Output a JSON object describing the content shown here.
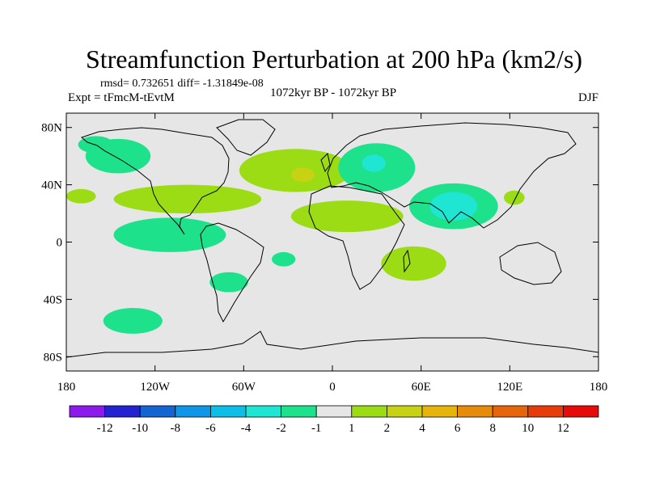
{
  "chart_data": {
    "type": "heatmap",
    "title": "Streamfunction Perturbation at 200 hPa (km2/s)",
    "stats_text": "rmsd= 0.732651  diff= -1.31849e-08",
    "expt_text": "Expt = tFmcM-tEvtM",
    "period_text": "1072kyr BP - 1072kyr BP",
    "season": "DJF",
    "x_axis": {
      "range": [
        -180,
        180
      ],
      "ticks": [
        -180,
        -120,
        -60,
        0,
        60,
        120,
        180
      ],
      "tick_labels": [
        "180",
        "120W",
        "60W",
        "0",
        "60E",
        "120E",
        "180"
      ]
    },
    "y_axis": {
      "range": [
        -90,
        90
      ],
      "ticks": [
        80,
        40,
        0,
        -40,
        -80
      ],
      "tick_labels": [
        "80N",
        "40N",
        "0",
        "40S",
        "80S"
      ]
    },
    "background_value_range": [
      -1,
      1
    ],
    "background_color": "#e6e6e6",
    "colorbar": {
      "colors": [
        "#8c1aeb",
        "#2323d2",
        "#1464d2",
        "#0f96e6",
        "#0fbee6",
        "#1ee6d2",
        "#1ee18c",
        "#e6e6e6",
        "#9bdc14",
        "#c8d214",
        "#e6b40a",
        "#e68c0a",
        "#e6640a",
        "#e63c0a",
        "#e60a0a"
      ],
      "levels": [
        -12,
        -10,
        -8,
        -6,
        -4,
        -2,
        -1,
        1,
        2,
        4,
        6,
        8,
        10,
        12
      ],
      "tick_labels": [
        "-12",
        "-10",
        "-8",
        "-6",
        "-4",
        "-2",
        "-1",
        "1",
        "2",
        "4",
        "6",
        "8",
        "10",
        "12"
      ]
    },
    "anomaly_regions": [
      {
        "name": "north-pacific-negative",
        "lon": -145,
        "lat": 60,
        "lon_radius": 22,
        "lat_radius": 12,
        "value": -1.5
      },
      {
        "name": "alaska-negative",
        "lon": -160,
        "lat": 68,
        "lon_radius": 12,
        "lat_radius": 6,
        "value": -1.5
      },
      {
        "name": "north-atlantic-positive",
        "lon": -25,
        "lat": 50,
        "lon_radius": 38,
        "lat_radius": 15,
        "value": 1.5
      },
      {
        "name": "north-atlantic-core",
        "lon": -20,
        "lat": 47,
        "lon_radius": 8,
        "lat_radius": 5,
        "value": 2.5
      },
      {
        "name": "europe-negative",
        "lon": 30,
        "lat": 52,
        "lon_radius": 26,
        "lat_radius": 17,
        "value": -1.5
      },
      {
        "name": "europe-core",
        "lon": 28,
        "lat": 55,
        "lon_radius": 8,
        "lat_radius": 6,
        "value": -2.5
      },
      {
        "name": "central-pacific-positive",
        "lon": -170,
        "lat": 32,
        "lon_radius": 10,
        "lat_radius": 5,
        "value": 1.5
      },
      {
        "name": "us-positive",
        "lon": -98,
        "lat": 30,
        "lon_radius": 50,
        "lat_radius": 10,
        "value": 1.5
      },
      {
        "name": "eq-pacific-negative",
        "lon": -110,
        "lat": 5,
        "lon_radius": 38,
        "lat_radius": 12,
        "value": -1.5
      },
      {
        "name": "sahara-positive",
        "lon": 10,
        "lat": 18,
        "lon_radius": 38,
        "lat_radius": 11,
        "value": 1.5
      },
      {
        "name": "india-negative",
        "lon": 82,
        "lat": 25,
        "lon_radius": 30,
        "lat_radius": 16,
        "value": -1.5
      },
      {
        "name": "india-core",
        "lon": 82,
        "lat": 25,
        "lon_radius": 16,
        "lat_radius": 10,
        "value": -2.5
      },
      {
        "name": "japan-positive",
        "lon": 123,
        "lat": 31,
        "lon_radius": 7,
        "lat_radius": 5,
        "value": 1.5
      },
      {
        "name": "atlantic-eq-negative",
        "lon": -33,
        "lat": -12,
        "lon_radius": 8,
        "lat_radius": 5,
        "value": -1.5
      },
      {
        "name": "madagascar-positive",
        "lon": 55,
        "lat": -15,
        "lon_radius": 22,
        "lat_radius": 12,
        "value": 1.5
      },
      {
        "name": "south-america-negative",
        "lon": -70,
        "lat": -28,
        "lon_radius": 13,
        "lat_radius": 7,
        "value": -1.5
      },
      {
        "name": "south-pacific-negative",
        "lon": -135,
        "lat": -55,
        "lon_radius": 20,
        "lat_radius": 9,
        "value": -1.5
      }
    ]
  }
}
